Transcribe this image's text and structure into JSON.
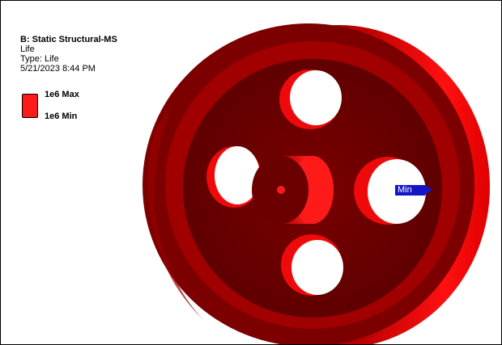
{
  "legend": {
    "title": "B: Static Structural-MS",
    "result": "Life",
    "type": "Type: Life",
    "timestamp": "5/21/2023 8:44 PM",
    "max_label": "1e6 Max",
    "min_label": "1e6 Min",
    "bar_color": "#ff1a1a"
  },
  "probe": {
    "label": "Min",
    "color": "#1515c8"
  },
  "model": {
    "face_color": "#6b0000",
    "rim_color": "#d80000",
    "hole_wall_color": "#ee0a0a"
  }
}
